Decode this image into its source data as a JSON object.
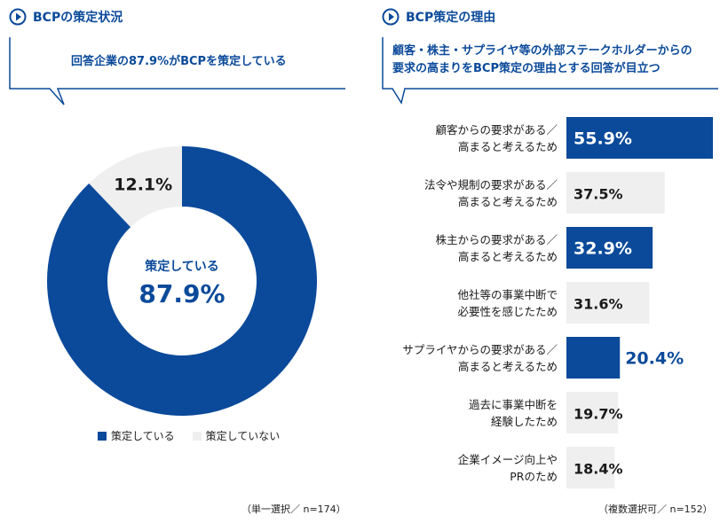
{
  "left_panel": {
    "title": "BCPの策定状況",
    "callout": "回答企業の87.9%がBCPを策定している",
    "note": "（単一選択／ n=174）"
  },
  "right_panel": {
    "title": "BCP策定の理由",
    "callout_line1": "顧客・株主・サプライヤ等の外部ステークホルダーからの",
    "callout_line2": "要求の高まりをBCP策定の理由とする回答が目立つ",
    "note": "（複数選択可／ n=152）"
  },
  "colors": {
    "primary": "#0b4a9a",
    "light_gray": "#efefef"
  },
  "chart_data": [
    {
      "type": "pie",
      "variant": "donut",
      "title": "BCPの策定状況",
      "slices": [
        {
          "label": "策定している",
          "value": 87.9,
          "display": "87.9%",
          "color": "#0b4a9a"
        },
        {
          "label": "策定していない",
          "value": 12.1,
          "display": "12.1%",
          "color": "#efefef"
        }
      ],
      "center_label": "策定している",
      "center_value": "87.9%",
      "legend": [
        "策定している",
        "策定していない"
      ],
      "legend_position": "bottom"
    },
    {
      "type": "bar",
      "orientation": "horizontal",
      "title": "BCP策定の理由",
      "xlim": [
        0,
        55.9
      ],
      "categories": [
        [
          "顧客からの要求がある／",
          "高まると考えるため"
        ],
        [
          "法令や規制の要求がある／",
          "高まると考えるため"
        ],
        [
          "株主からの要求がある／",
          "高まると考えるため"
        ],
        [
          "他社等の事業中断で",
          "必要性を感じたため"
        ],
        [
          "サプライヤからの要求がある／",
          "高まると考えるため"
        ],
        [
          "過去に事業中断を",
          "経験したため"
        ],
        [
          "企業イメージ向上や",
          "PRのため"
        ]
      ],
      "values": [
        55.9,
        37.5,
        32.9,
        31.6,
        20.4,
        19.7,
        18.4
      ],
      "highlighted": [
        true,
        false,
        true,
        false,
        true,
        false,
        false
      ],
      "unit": "%"
    }
  ]
}
